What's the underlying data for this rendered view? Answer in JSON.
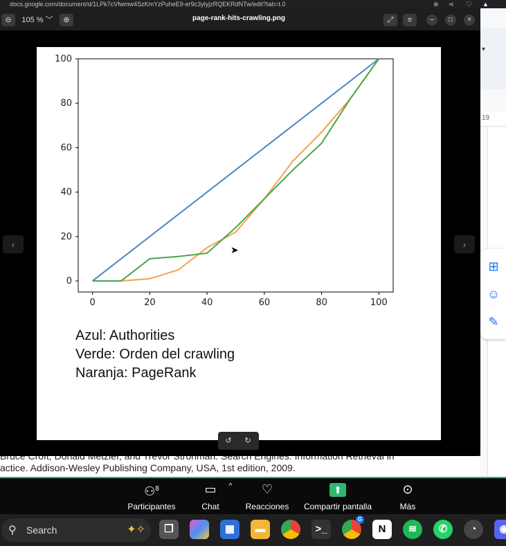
{
  "browser": {
    "url": "docs.google.com/document/d/1LPk7cVfwmw4SzKmYzPuheE9-er9c3ylyjzRQEKRdNTw/edit?tab=t.0"
  },
  "docs": {
    "ruler_num": "19",
    "line1": "Bruce Croft, Donald Metzler, and Trevor Strohman. Search Engines: Information Retrieval in",
    "line2": "actice. Addison-Wesley Publishing Company, USA, 1st edition, 2009."
  },
  "viewer": {
    "zoom": "105 %",
    "title": "page-rank-hits-crawling.png",
    "prev": "‹",
    "next": "›"
  },
  "chart_data": {
    "type": "line",
    "xlim": [
      -5,
      105
    ],
    "ylim": [
      -5,
      100
    ],
    "xticks": [
      "0",
      "20",
      "40",
      "60",
      "80",
      "100"
    ],
    "yticks": [
      "0",
      "20",
      "40",
      "60",
      "80",
      "100"
    ],
    "series": [
      {
        "color": "#4c84c4",
        "x": [
          0,
          100
        ],
        "y": [
          0,
          100
        ]
      },
      {
        "color": "#f6a04d",
        "x": [
          0,
          10,
          20,
          30,
          40,
          50,
          60,
          70,
          80,
          90,
          100
        ],
        "y": [
          0,
          0,
          1,
          5,
          15,
          22,
          37,
          54,
          67,
          82,
          100
        ]
      },
      {
        "color": "#4aa54a",
        "x": [
          0,
          10,
          20,
          30,
          40,
          50,
          60,
          70,
          80,
          90,
          100
        ],
        "y": [
          0,
          0,
          10,
          11,
          12.5,
          24,
          37,
          50,
          62,
          82,
          100
        ]
      }
    ]
  },
  "legend": {
    "line1": "Azul: Authorities",
    "line2": "Verde: Orden del crawling",
    "line3": "Naranja: PageRank"
  },
  "meeting": {
    "participants_label": "Participantes",
    "participants_count": "8",
    "chat_label": "Chat",
    "reactions_label": "Reacciones",
    "share_label": "Compartir pantalla",
    "more_label": "Más"
  },
  "taskbar": {
    "search_label": "Search",
    "chrome_badge": "G"
  }
}
